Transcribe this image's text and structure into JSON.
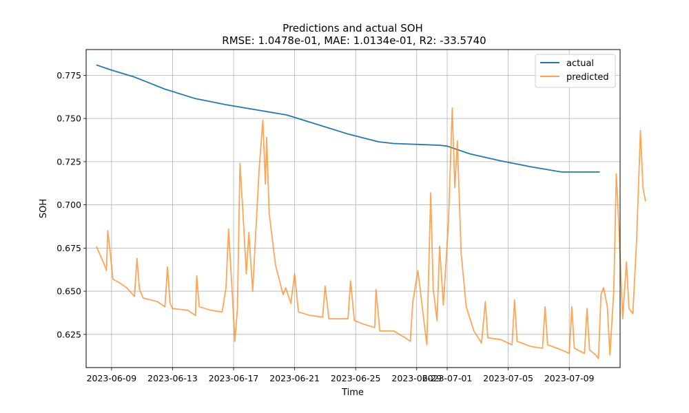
{
  "chart_data": {
    "type": "line",
    "title": "Predictions and actual SOH",
    "subtitle": "RMSE: 1.0478e-01, MAE: 1.0134e-01, R2: -33.5740",
    "xlabel": "Time",
    "ylabel": "SOH",
    "xlim": [
      "2023-06-07T08:00",
      "2023-07-12T08:00"
    ],
    "ylim": [
      0.6058,
      0.7899
    ],
    "x_ticks": [
      "2023-06-09",
      "2023-06-13",
      "2023-06-17",
      "2023-06-21",
      "2023-06-25",
      "2023-06-29",
      "2023-07-01",
      "2023-07-05",
      "2023-07-09"
    ],
    "y_ticks": [
      0.625,
      0.65,
      0.675,
      0.7,
      0.725,
      0.75,
      0.775
    ],
    "y_tick_labels": [
      "0.625",
      "0.650",
      "0.675",
      "0.700",
      "0.725",
      "0.750",
      "0.775"
    ],
    "grid": true,
    "legend_position": "upper right",
    "series": [
      {
        "name": "actual",
        "color": "#1f77b4",
        "points": [
          [
            "2023-06-08T00:00",
            0.781
          ],
          [
            "2023-06-09T00:00",
            0.778
          ],
          [
            "2023-06-10T12:00",
            0.774
          ],
          [
            "2023-06-12T12:00",
            0.767
          ],
          [
            "2023-06-14T12:00",
            0.7615
          ],
          [
            "2023-06-16T12:00",
            0.758
          ],
          [
            "2023-06-18T12:00",
            0.755
          ],
          [
            "2023-06-20T12:00",
            0.752
          ],
          [
            "2023-06-22T12:00",
            0.7465
          ],
          [
            "2023-06-24T12:00",
            0.741
          ],
          [
            "2023-06-26T12:00",
            0.7365
          ],
          [
            "2023-06-27T12:00",
            0.7355
          ],
          [
            "2023-06-30T12:00",
            0.7345
          ],
          [
            "2023-07-01T00:00",
            0.734
          ],
          [
            "2023-07-02T12:00",
            0.7295
          ],
          [
            "2023-07-04T12:00",
            0.7255
          ],
          [
            "2023-07-06T12:00",
            0.722
          ],
          [
            "2023-07-08T12:00",
            0.719
          ],
          [
            "2023-07-09T00:00",
            0.719
          ],
          [
            "2023-07-10T12:00",
            0.719
          ],
          [
            "2023-07-11T00:00",
            0.719
          ]
        ]
      },
      {
        "name": "predicted",
        "color": "#ff7f0e",
        "opacity": 0.7,
        "points": [
          [
            "2023-06-08T00:00",
            0.676
          ],
          [
            "2023-06-08T06:00",
            0.671
          ],
          [
            "2023-06-08T12:00",
            0.666
          ],
          [
            "2023-06-08T16:00",
            0.662
          ],
          [
            "2023-06-08T18:00",
            0.685
          ],
          [
            "2023-06-08T22:00",
            0.672
          ],
          [
            "2023-06-09T02:00",
            0.657
          ],
          [
            "2023-06-09T12:00",
            0.655
          ],
          [
            "2023-06-10T00:00",
            0.652
          ],
          [
            "2023-06-10T12:00",
            0.647
          ],
          [
            "2023-06-10T16:00",
            0.669
          ],
          [
            "2023-06-10T20:00",
            0.651
          ],
          [
            "2023-06-11T02:00",
            0.646
          ],
          [
            "2023-06-12T00:00",
            0.644
          ],
          [
            "2023-06-12T12:00",
            0.641
          ],
          [
            "2023-06-12T16:00",
            0.664
          ],
          [
            "2023-06-12T20:00",
            0.643
          ],
          [
            "2023-06-13T00:00",
            0.64
          ],
          [
            "2023-06-14T00:00",
            0.639
          ],
          [
            "2023-06-14T12:00",
            0.636
          ],
          [
            "2023-06-14T14:00",
            0.659
          ],
          [
            "2023-06-14T18:00",
            0.641
          ],
          [
            "2023-06-15T12:00",
            0.639
          ],
          [
            "2023-06-16T06:00",
            0.638
          ],
          [
            "2023-06-16T12:00",
            0.652
          ],
          [
            "2023-06-16T16:00",
            0.686
          ],
          [
            "2023-06-16T22:00",
            0.648
          ],
          [
            "2023-06-17T02:00",
            0.621
          ],
          [
            "2023-06-17T06:00",
            0.64
          ],
          [
            "2023-06-17T10:00",
            0.724
          ],
          [
            "2023-06-17T14:00",
            0.7
          ],
          [
            "2023-06-17T20:00",
            0.66
          ],
          [
            "2023-06-18T00:00",
            0.684
          ],
          [
            "2023-06-18T06:00",
            0.65
          ],
          [
            "2023-06-18T16:00",
            0.72
          ],
          [
            "2023-06-18T22:00",
            0.749
          ],
          [
            "2023-06-19T02:00",
            0.712
          ],
          [
            "2023-06-19T04:00",
            0.739
          ],
          [
            "2023-06-19T08:00",
            0.695
          ],
          [
            "2023-06-19T18:00",
            0.665
          ],
          [
            "2023-06-20T06:00",
            0.648
          ],
          [
            "2023-06-20T10:00",
            0.652
          ],
          [
            "2023-06-20T18:00",
            0.643
          ],
          [
            "2023-06-21T00:00",
            0.66
          ],
          [
            "2023-06-21T06:00",
            0.638
          ],
          [
            "2023-06-22T00:00",
            0.636
          ],
          [
            "2023-06-22T20:00",
            0.635
          ],
          [
            "2023-06-23T00:00",
            0.653
          ],
          [
            "2023-06-23T06:00",
            0.634
          ],
          [
            "2023-06-24T12:00",
            0.634
          ],
          [
            "2023-06-24T16:00",
            0.656
          ],
          [
            "2023-06-24T22:00",
            0.633
          ],
          [
            "2023-06-25T12:00",
            0.631
          ],
          [
            "2023-06-26T06:00",
            0.629
          ],
          [
            "2023-06-26T08:00",
            0.651
          ],
          [
            "2023-06-26T14:00",
            0.627
          ],
          [
            "2023-06-27T12:00",
            0.627
          ],
          [
            "2023-06-28T06:00",
            0.623
          ],
          [
            "2023-06-28T14:00",
            0.621
          ],
          [
            "2023-06-28T18:00",
            0.644
          ],
          [
            "2023-06-29T02:00",
            0.662
          ],
          [
            "2023-06-29T10:00",
            0.637
          ],
          [
            "2023-06-29T16:00",
            0.619
          ],
          [
            "2023-06-29T22:00",
            0.707
          ],
          [
            "2023-06-30T02:00",
            0.651
          ],
          [
            "2023-06-30T08:00",
            0.633
          ],
          [
            "2023-06-30T12:00",
            0.676
          ],
          [
            "2023-06-30T18:00",
            0.642
          ],
          [
            "2023-07-01T02:00",
            0.69
          ],
          [
            "2023-07-01T08:00",
            0.756
          ],
          [
            "2023-07-01T12:00",
            0.71
          ],
          [
            "2023-07-01T16:00",
            0.737
          ],
          [
            "2023-07-01T22:00",
            0.672
          ],
          [
            "2023-07-02T06:00",
            0.641
          ],
          [
            "2023-07-02T18:00",
            0.627
          ],
          [
            "2023-07-03T06:00",
            0.62
          ],
          [
            "2023-07-03T12:00",
            0.644
          ],
          [
            "2023-07-03T16:00",
            0.623
          ],
          [
            "2023-07-04T12:00",
            0.622
          ],
          [
            "2023-07-05T06:00",
            0.619
          ],
          [
            "2023-07-05T10:00",
            0.645
          ],
          [
            "2023-07-05T14:00",
            0.621
          ],
          [
            "2023-07-06T12:00",
            0.618
          ],
          [
            "2023-07-07T06:00",
            0.617
          ],
          [
            "2023-07-07T10:00",
            0.641
          ],
          [
            "2023-07-07T14:00",
            0.619
          ],
          [
            "2023-07-08T12:00",
            0.616
          ],
          [
            "2023-07-09T00:00",
            0.614
          ],
          [
            "2023-07-09T04:00",
            0.641
          ],
          [
            "2023-07-09T08:00",
            0.617
          ],
          [
            "2023-07-10T00:00",
            0.614
          ],
          [
            "2023-07-10T04:00",
            0.64
          ],
          [
            "2023-07-10T08:00",
            0.616
          ],
          [
            "2023-07-10T18:00",
            0.613
          ],
          [
            "2023-07-10T22:00",
            0.611
          ],
          [
            "2023-07-11T02:00",
            0.648
          ],
          [
            "2023-07-11T06:00",
            0.652
          ],
          [
            "2023-07-11T12:00",
            0.641
          ],
          [
            "2023-07-11T16:00",
            0.613
          ],
          [
            "2023-07-11T22:00",
            0.65
          ],
          [
            "2023-07-12T02:00",
            0.718
          ],
          [
            "2023-07-12T06:00",
            0.688
          ],
          [
            "2023-07-12T12:00",
            0.634
          ],
          [
            "2023-07-12T18:00",
            0.667
          ],
          [
            "2023-07-12T22:00",
            0.64
          ],
          [
            "2023-07-13T04:00",
            0.637
          ],
          [
            "2023-07-13T10:00",
            0.68
          ],
          [
            "2023-07-13T16:00",
            0.743
          ],
          [
            "2023-07-13T20:00",
            0.71
          ],
          [
            "2023-07-14T00:00",
            0.702
          ]
        ]
      }
    ]
  }
}
